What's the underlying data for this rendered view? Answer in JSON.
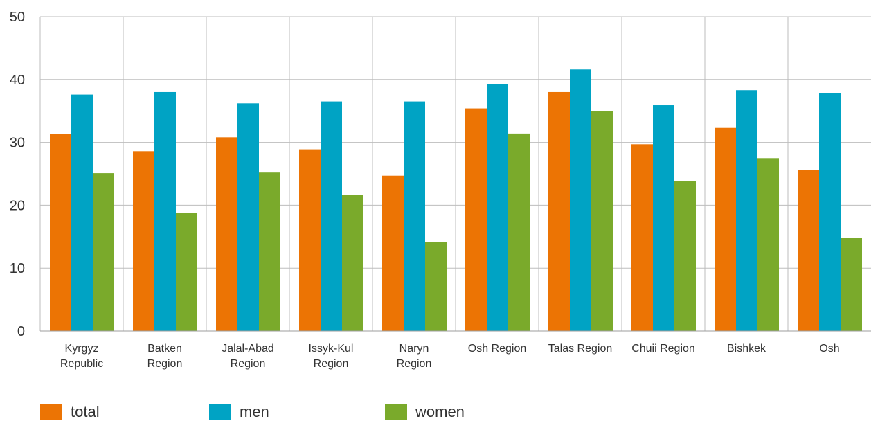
{
  "chart_data": {
    "type": "bar",
    "categories": [
      [
        "Kyrgyz",
        "Republic"
      ],
      [
        "Batken",
        "Region"
      ],
      [
        "Jalal-Abad",
        "Region"
      ],
      [
        "Issyk-Kul",
        "Region"
      ],
      [
        "Naryn",
        "Region"
      ],
      [
        "Osh Region"
      ],
      [
        "Talas Region"
      ],
      [
        "Chuii Region"
      ],
      [
        "Bishkek"
      ],
      [
        "Osh"
      ]
    ],
    "series": [
      {
        "name": "total",
        "color": "#EC7404",
        "values": [
          31.3,
          28.6,
          30.8,
          28.9,
          24.7,
          35.4,
          38.0,
          29.7,
          32.3,
          25.6
        ]
      },
      {
        "name": "men",
        "color": "#00A3C4",
        "values": [
          37.6,
          38.0,
          36.2,
          36.5,
          36.5,
          39.3,
          41.6,
          35.9,
          38.3,
          37.8
        ]
      },
      {
        "name": "women",
        "color": "#7AAA2B",
        "values": [
          25.1,
          18.8,
          25.2,
          21.6,
          14.2,
          31.4,
          35.0,
          23.8,
          27.5,
          14.8
        ]
      }
    ],
    "yticks": [
      0,
      10,
      20,
      30,
      40,
      50
    ],
    "ylim": [
      0,
      50
    ],
    "grid": true,
    "legend_position": "bottom-left",
    "title": "",
    "xlabel": "",
    "ylabel": ""
  }
}
